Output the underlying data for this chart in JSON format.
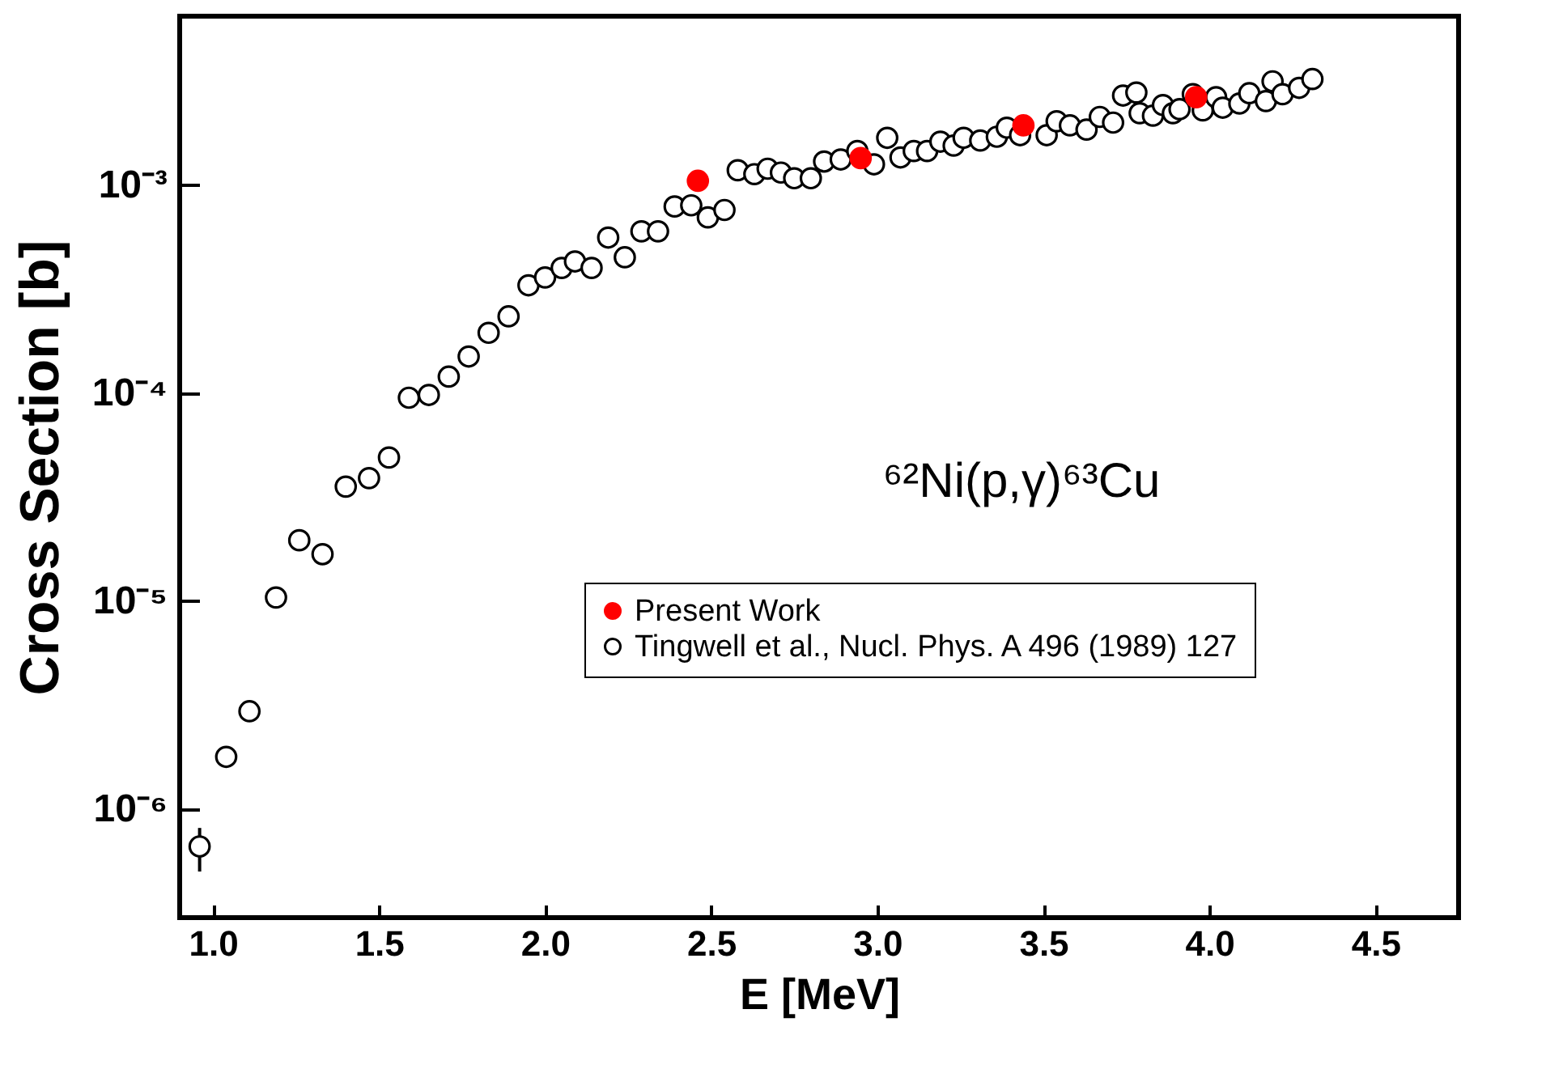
{
  "chart_data": {
    "type": "scatter",
    "xlabel": "E [MeV]",
    "ylabel": "Cross Section [b]",
    "log": "y",
    "grid": false,
    "legend": "bottom right",
    "marker": "circle",
    "annotations": [
      "⁶²Ni(p,γ)⁶³Cu"
    ],
    "xlim": [
      0.9,
      4.75
    ],
    "xticks": [
      {
        "value": 1,
        "label": "1.0"
      },
      {
        "value": 1.5,
        "label": "1.5"
      },
      {
        "value": 2,
        "label": "2.0"
      },
      {
        "value": 2.5,
        "label": "2.5"
      },
      {
        "value": 3,
        "label": "3.0"
      },
      {
        "value": 3.5,
        "label": "3.5"
      },
      {
        "value": 4,
        "label": "4.0"
      },
      {
        "value": 4.5,
        "label": "4.5"
      }
    ],
    "ylim": [
      3e-07,
      0.0065
    ],
    "yticks": [
      {
        "value": 1e-06,
        "label": "10⁻⁶"
      },
      {
        "value": 1e-05,
        "label": "10⁻⁵"
      },
      {
        "value": 0.0001,
        "label": "10⁻⁴"
      },
      {
        "value": 0.001,
        "label": "10⁻³"
      }
    ],
    "series": [
      {
        "name": "Present Work",
        "color": "#ff0000",
        "x": [
          2.46,
          2.95,
          3.44,
          3.96
        ],
        "values": [
          0.00105,
          0.00135,
          0.00194,
          0.00265
        ]
      },
      {
        "name": "Tingwell et al., Nucl. Phys. A 496 (1989) 127",
        "color": "#000000",
        "x": [
          0.96,
          1.04,
          1.11,
          1.19,
          1.26,
          1.33,
          1.4,
          1.47,
          1.53,
          1.59,
          1.65,
          1.71,
          1.77,
          1.83,
          1.89,
          1.95,
          2.0,
          2.05,
          2.09,
          2.14,
          2.19,
          2.24,
          2.29,
          2.34,
          2.39,
          2.44,
          2.49,
          2.54,
          2.58,
          2.63,
          2.67,
          2.71,
          2.75,
          2.8,
          2.84,
          2.89,
          2.94,
          2.99,
          3.03,
          3.07,
          3.11,
          3.15,
          3.19,
          3.23,
          3.26,
          3.31,
          3.36,
          3.39,
          3.43,
          3.51,
          3.54,
          3.58,
          3.63,
          3.67,
          3.71,
          3.74,
          3.78,
          3.79,
          3.83,
          3.86,
          3.89,
          3.91,
          3.95,
          3.98,
          4.02,
          4.04,
          4.09,
          4.12,
          4.17,
          4.19,
          4.22,
          4.27,
          4.31
        ],
        "values": [
          6.6e-07,
          1.78e-06,
          2.95e-06,
          1.04e-05,
          1.96e-05,
          1.68e-05,
          3.55e-05,
          3.9e-05,
          4.9e-05,
          9.5e-05,
          9.8e-05,
          0.00012,
          0.00015,
          0.000195,
          0.000234,
          0.00033,
          0.00036,
          0.0004,
          0.00043,
          0.0004,
          0.00056,
          0.00045,
          0.0006,
          0.0006,
          0.00079,
          0.0008,
          0.0007,
          0.00076,
          0.00118,
          0.00113,
          0.0012,
          0.00115,
          0.00108,
          0.00108,
          0.0013,
          0.00133,
          0.00146,
          0.00126,
          0.00169,
          0.00136,
          0.00146,
          0.00146,
          0.00162,
          0.00155,
          0.00169,
          0.00164,
          0.00171,
          0.00189,
          0.00174,
          0.00174,
          0.00203,
          0.00194,
          0.00185,
          0.00213,
          0.002,
          0.0027,
          0.00279,
          0.00222,
          0.00216,
          0.00243,
          0.00222,
          0.00232,
          0.00274,
          0.00229,
          0.00265,
          0.00236,
          0.00247,
          0.00277,
          0.00254,
          0.00316,
          0.00274,
          0.00294,
          0.00324
        ],
        "errors": [
          [
            5e-07,
            8.1e-07
          ],
          null,
          null,
          null,
          null,
          null,
          null,
          null,
          null,
          null,
          null,
          null,
          null,
          null,
          null,
          null,
          null,
          null,
          null,
          null,
          null,
          null,
          null,
          null,
          null,
          null,
          null,
          null,
          null,
          null,
          null,
          null,
          null,
          null,
          null,
          null,
          null,
          null,
          null,
          null,
          null,
          null,
          null,
          null,
          null,
          null,
          null,
          null,
          null,
          null,
          null,
          null,
          null,
          null,
          null,
          null,
          null,
          null,
          null,
          null,
          null,
          null,
          null,
          null,
          null,
          null,
          null,
          null,
          null,
          null,
          null,
          null,
          null
        ]
      }
    ]
  }
}
